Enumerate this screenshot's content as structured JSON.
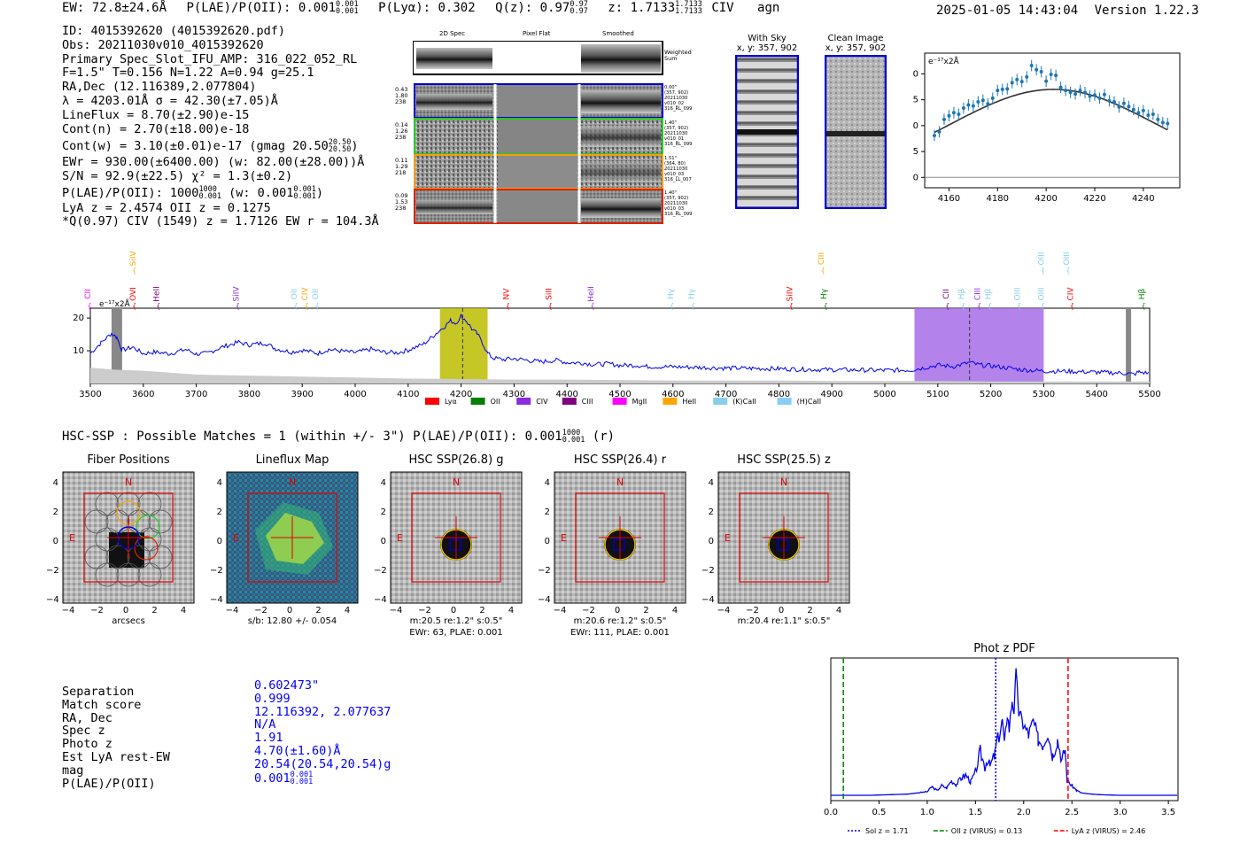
{
  "header": {
    "ew": "EW: 72.8±24.6Å",
    "plae_label": "P(LAE)/P(OII): 0.001",
    "plae_hi": "0.001",
    "plae_lo": "0.001",
    "plya": "P(Lyα): 0.302",
    "qz_label": "Q(z): 0.97",
    "qz_hi": "0.97",
    "qz_lo": "0.97",
    "z_label": "z: 1.7133",
    "z_hi": "1.7133",
    "z_lo": "1.7133",
    "line": "CIV",
    "class": "agn",
    "timestamp": "2025-01-05 14:43:04",
    "version": "Version 1.22.3"
  },
  "info": {
    "id": "ID: 4015392620 (4015392620.pdf)",
    "obs": "Obs: 20211030v010_4015392620",
    "primary": "Primary Spec_Slot_IFU_AMP: 316_022_052_RL",
    "fwhm": "F=1.5\"  T=0.156  N=1.22  A=0.94  g=25.1",
    "radec": "RA,Dec (12.116389,2.077804)",
    "lambda": "λ = 4203.01Å  σ = 42.30(±7.05)Å",
    "lineflux": "LineFlux = 8.70(±2.90)e-15",
    "contn": "Cont(n) = 2.70(±18.00)e-18",
    "contw": "Cont(w) = 3.10(±0.01)e-17 (gmag 20.50",
    "contw_hi": "20.50",
    "contw_lo": "20.50",
    "ewr": "EWr = 930.00(±6400.00) (w: 82.00(±28.00))Å",
    "sn": "S/N = 92.9(±22.5)  χ² = 1.3(±0.2)",
    "plae": "P(LAE)/P(OII): 1000",
    "plae_hi": "1000",
    "plae_lo": "0.001",
    "plae_w": "(w: 0.001",
    "plae_w_hi": "0.001",
    "plae_w_lo": "0.001",
    "lyaz": "LyA z = 2.4574  OII z = 0.1275",
    "q": "*Q(0.97) CIV (1549) z = 1.7126  EW r = 104.3Å"
  },
  "cutouts": {
    "col_headers": [
      "2D Spec",
      "Pixel Flat",
      "Smoothed"
    ],
    "weighted_label": "Weighted\nSum",
    "rows": [
      {
        "left": "0.43\n1.80\n238",
        "right": "0.00\"\n(357, 902)\n20211030\nv010_02\n316_RL_099",
        "color": "#0000cc"
      },
      {
        "left": "0.14\n1.26\n238",
        "right": "1.40\"\n(357, 902)\n20211030\nv010_01\n316_RL_099",
        "color": "#22cc22"
      },
      {
        "left": "0.11\n1.29\n218",
        "right": "1.51\"\n(364, 80)\n20211030\nv010_03\n316_LL_007",
        "color": "#f5a000"
      },
      {
        "left": "0.09\n1.53\n238",
        "right": "1.40\"\n(357, 902)\n20211030\nv010_03\n316_RL_099",
        "color": "#dd2200"
      }
    ],
    "with_sky": "With Sky",
    "with_sky_xy": "x, y: 357, 902",
    "clean": "Clean Image",
    "clean_xy": "x, y: 357, 902"
  },
  "colors": {
    "blue": "#0000ff",
    "red": "#e8000b",
    "olive": "#bcbd00",
    "violet": "#a66de8",
    "lya": "#ff0000",
    "oii": "#008000",
    "civ": "#8a2be2",
    "ciii": "#800080",
    "mgii": "#ff00ff",
    "heii": "#ffa500",
    "kcaii": "#87ceeb",
    "hcaii": "#87cefa"
  },
  "chart_data": [
    {
      "type": "scatter",
      "name": "zoom-line-fit",
      "ylabel": "e⁻¹⁷x2Å",
      "xlim": [
        4150,
        4255
      ],
      "ylim": [
        -2,
        24
      ],
      "xticks": [
        4160,
        4180,
        4200,
        4220,
        4240
      ],
      "yticks": [
        0,
        5,
        10,
        15,
        20
      ],
      "x": [
        4154,
        4156,
        4158,
        4160,
        4162,
        4164,
        4166,
        4168,
        4170,
        4172,
        4174,
        4176,
        4178,
        4180,
        4182,
        4184,
        4186,
        4188,
        4190,
        4192,
        4194,
        4196,
        4198,
        4200,
        4202,
        4204,
        4206,
        4208,
        4210,
        4212,
        4214,
        4216,
        4218,
        4220,
        4222,
        4224,
        4226,
        4228,
        4230,
        4232,
        4234,
        4236,
        4238,
        4240,
        4242,
        4244,
        4246,
        4248,
        4250
      ],
      "y": [
        8.1,
        8.8,
        11.2,
        11.9,
        12.5,
        12.2,
        13.4,
        14.0,
        13.8,
        14.6,
        14.9,
        14.2,
        15.3,
        16.8,
        17.0,
        17.1,
        18.3,
        18.9,
        18.5,
        19.4,
        21.6,
        20.8,
        20.4,
        18.6,
        19.9,
        19.7,
        17.4,
        16.8,
        16.4,
        16.1,
        16.8,
        16.4,
        15.7,
        15.9,
        15.3,
        16.0,
        14.8,
        14.6,
        13.6,
        14.3,
        13.7,
        13.1,
        12.5,
        12.9,
        12.0,
        12.2,
        11.2,
        10.6,
        10.4
      ],
      "fit": {
        "center": 4203.01,
        "sigma": 42.3,
        "peak": 17.0,
        "base": 0
      }
    },
    {
      "type": "line",
      "name": "full-spectrum",
      "ylabel": "e⁻¹⁷x2Å",
      "xlim": [
        3500,
        5500
      ],
      "ylim": [
        0,
        23
      ],
      "xticks": [
        3500,
        3600,
        3700,
        3800,
        3900,
        4000,
        4100,
        4200,
        4300,
        4400,
        4500,
        4600,
        4700,
        4800,
        4900,
        5000,
        5100,
        5200,
        5300,
        5400,
        5500
      ],
      "yticks": [
        10,
        20
      ],
      "series": [
        {
          "name": "spectrum",
          "x": [
            3500,
            3520,
            3540,
            3550,
            3560,
            3580,
            3600,
            3620,
            3650,
            3680,
            3700,
            3720,
            3750,
            3780,
            3800,
            3830,
            3850,
            3880,
            3900,
            3930,
            3950,
            3980,
            4000,
            4030,
            4050,
            4080,
            4100,
            4130,
            4150,
            4170,
            4180,
            4190,
            4200,
            4210,
            4220,
            4230,
            4240,
            4250,
            4260,
            4280,
            4300,
            4330,
            4350,
            4380,
            4400,
            4430,
            4450,
            4480,
            4500,
            4530,
            4550,
            4580,
            4600,
            4650,
            4700,
            4750,
            4800,
            4850,
            4900,
            4950,
            5000,
            5050,
            5100,
            5130,
            5160,
            5180,
            5200,
            5230,
            5260,
            5300,
            5350,
            5400,
            5450,
            5470,
            5480,
            5500
          ],
          "y": [
            9.2,
            12.4,
            15.3,
            14.1,
            10.2,
            11.1,
            9.1,
            9.6,
            9.1,
            10.4,
            9.0,
            9.2,
            11.2,
            12.6,
            11.8,
            12.4,
            10.6,
            9.6,
            10.2,
            9.2,
            10.4,
            9.8,
            9.4,
            10.5,
            9.6,
            9.4,
            10.2,
            12.1,
            14.9,
            17.6,
            19.2,
            18.4,
            20.6,
            19.1,
            16.7,
            15.2,
            12.6,
            9.2,
            7.8,
            7.3,
            7.6,
            7.0,
            6.6,
            7.1,
            6.4,
            6.3,
            5.8,
            6.0,
            5.5,
            5.6,
            5.2,
            5.1,
            5.1,
            4.9,
            4.7,
            4.6,
            4.5,
            4.3,
            4.2,
            4.1,
            4.0,
            4.1,
            5.6,
            5.2,
            6.4,
            5.6,
            5.4,
            4.8,
            4.2,
            3.8,
            3.7,
            3.4,
            3.2,
            2.8,
            3.5,
            3.1
          ]
        },
        {
          "name": "sky",
          "x": [
            3500,
            3550,
            3600,
            3650,
            3700,
            3800,
            3900,
            4000,
            4100,
            4200,
            4300,
            4400,
            4500,
            4600,
            4700,
            4800,
            4900,
            5000,
            5100,
            5200,
            5300,
            5400,
            5500
          ],
          "y": [
            1.6,
            1.4,
            1.3,
            1.1,
            0.9,
            0.8,
            0.7,
            0.6,
            0.5,
            0.45,
            0.4,
            0.4,
            0.35,
            0.3,
            0.3,
            0.3,
            0.25,
            0.25,
            0.25,
            0.2,
            0.2,
            0.2,
            0.2
          ]
        }
      ],
      "highlights": [
        {
          "from": 4160,
          "to": 4250,
          "color": "#bcbd00",
          "marker": 4203
        },
        {
          "from": 5056,
          "to": 5300,
          "color": "#a66de8",
          "marker": 5160
        }
      ],
      "masked": [
        [
          3540,
          3560
        ],
        [
          5455,
          5465
        ]
      ],
      "top_lines": [
        {
          "label": "CII",
          "x": 3500,
          "color": "#ff00ff",
          "row": 2
        },
        {
          "label": "OVI",
          "x": 3585,
          "color": "#ff0000",
          "row": 2
        },
        {
          "label": "SiIV",
          "x": 3585,
          "color": "#ffa500",
          "row": 0
        },
        {
          "label": "HeII",
          "x": 3630,
          "color": "#800080",
          "row": 2
        },
        {
          "label": "SiIV",
          "x": 3780,
          "color": "#8a2be2",
          "row": 2
        },
        {
          "label": "OII",
          "x": 3890,
          "color": "#87ceeb",
          "row": 2
        },
        {
          "label": "CIV",
          "x": 3910,
          "color": "#ffa500",
          "row": 2
        },
        {
          "label": "OII",
          "x": 3930,
          "color": "#87ceeb",
          "row": 2
        },
        {
          "label": "NV",
          "x": 4290,
          "color": "#ff0000",
          "row": 2
        },
        {
          "label": "SiII",
          "x": 4370,
          "color": "#ff0000",
          "row": 2
        },
        {
          "label": "HeII",
          "x": 4450,
          "color": "#8a2be2",
          "row": 2
        },
        {
          "label": "Hγ",
          "x": 4600,
          "color": "#87ceeb",
          "row": 2
        },
        {
          "label": "Hγ",
          "x": 4640,
          "color": "#87ceeb",
          "row": 2
        },
        {
          "label": "SiIV",
          "x": 4825,
          "color": "#ff0000",
          "row": 2
        },
        {
          "label": "CIII",
          "x": 4885,
          "color": "#ffa500",
          "row": 0
        },
        {
          "label": "Hγ",
          "x": 4890,
          "color": "#008000",
          "row": 2
        },
        {
          "label": "CII",
          "x": 5120,
          "color": "#800080",
          "row": 2
        },
        {
          "label": "Hβ",
          "x": 5150,
          "color": "#87ceeb",
          "row": 2
        },
        {
          "label": "CIII",
          "x": 5180,
          "color": "#8a2be2",
          "row": 2
        },
        {
          "label": "Hβ",
          "x": 5200,
          "color": "#87ceeb",
          "row": 2
        },
        {
          "label": "OIII",
          "x": 5255,
          "color": "#87ceeb",
          "row": 2
        },
        {
          "label": "OIII",
          "x": 5300,
          "color": "#87ceeb",
          "row": 2
        },
        {
          "label": "OIII",
          "x": 5300,
          "color": "#87ceeb",
          "row": 0
        },
        {
          "label": "OIII",
          "x": 5348,
          "color": "#87ceeb",
          "row": 0
        },
        {
          "label": "CIV",
          "x": 5355,
          "color": "#ff0000",
          "row": 2
        },
        {
          "label": "Hβ",
          "x": 5490,
          "color": "#008000",
          "row": 2
        }
      ],
      "legend": [
        {
          "label": "Lyα",
          "color": "#ff0000"
        },
        {
          "label": "OII",
          "color": "#008000"
        },
        {
          "label": "CIV",
          "color": "#8a2be2"
        },
        {
          "label": "CIII",
          "color": "#800080"
        },
        {
          "label": "MgII",
          "color": "#ff00ff"
        },
        {
          "label": "HeII",
          "color": "#ffa500"
        },
        {
          "label": "(K)CaII",
          "color": "#87ceeb"
        },
        {
          "label": "(H)CaII",
          "color": "#87cefa"
        }
      ]
    },
    {
      "type": "line",
      "name": "phot-z-pdf",
      "title": "Phot z PDF",
      "xlim": [
        0.0,
        3.6
      ],
      "ylim": [
        0,
        1.08
      ],
      "xticks": [
        "0.0",
        "0.5",
        "1.0",
        "1.5",
        "2.0",
        "2.5",
        "3.0",
        "3.5"
      ],
      "x": [
        0.0,
        0.2,
        0.4,
        0.6,
        0.8,
        1.0,
        1.05,
        1.1,
        1.15,
        1.2,
        1.25,
        1.3,
        1.35,
        1.4,
        1.45,
        1.5,
        1.55,
        1.6,
        1.62,
        1.65,
        1.7,
        1.72,
        1.75,
        1.78,
        1.8,
        1.83,
        1.85,
        1.88,
        1.9,
        1.92,
        1.95,
        1.97,
        2.0,
        2.05,
        2.1,
        2.15,
        2.2,
        2.25,
        2.3,
        2.35,
        2.4,
        2.43,
        2.45,
        2.5,
        2.55,
        2.6,
        2.7,
        2.8,
        3.0,
        3.2,
        3.4,
        3.6
      ],
      "y": [
        0.0,
        0.0,
        0.0,
        0.005,
        0.01,
        0.03,
        0.07,
        0.04,
        0.08,
        0.06,
        0.12,
        0.09,
        0.14,
        0.17,
        0.11,
        0.19,
        0.36,
        0.23,
        0.3,
        0.24,
        0.33,
        0.44,
        0.5,
        0.62,
        0.4,
        0.68,
        0.55,
        0.79,
        0.7,
        1.0,
        0.68,
        0.64,
        0.58,
        0.5,
        0.61,
        0.46,
        0.42,
        0.52,
        0.33,
        0.46,
        0.29,
        0.38,
        0.12,
        0.08,
        0.04,
        0.02,
        0.01,
        0.005,
        0.0,
        0.0,
        0.0,
        0.0
      ],
      "vlines": [
        {
          "x": 1.71,
          "color": "#0000ff",
          "style": "dotted"
        },
        {
          "x": 0.13,
          "color": "#008000",
          "style": "dashed"
        },
        {
          "x": 2.46,
          "color": "#ff0000",
          "style": "dashed"
        }
      ],
      "legend": [
        "Sol z = 1.71",
        "OII z (VIRUS) = 0.13",
        "LyA z (VIRUS) = 2.46"
      ]
    }
  ],
  "hsc": {
    "title": "HSC-SSP : Possible Matches = 1 (within +/- 3\")  P(LAE)/P(OII): 0.001",
    "frac_hi": "1000",
    "frac_lo": "0.001",
    "suffix": "(r)"
  },
  "panels": [
    {
      "title": "Fiber Positions",
      "caption": "arcsecs"
    },
    {
      "title": "Lineflux Map",
      "caption": "s/b: 12.80 +/- 0.054"
    },
    {
      "title": "HSC SSP(26.8) g",
      "caption": "m:20.5  re:1.2\"  s:0.5\"",
      "caption2": "EWr: 63, PLAE: 0.001"
    },
    {
      "title": "HSC SSP(26.4) r",
      "caption": "m:20.6  re:1.2\"  s:0.5\"",
      "caption2": "EWr: 111, PLAE: 0.001"
    },
    {
      "title": "HSC SSP(25.5) z",
      "caption": "m:20.4  re:1.1\"  s:0.5\""
    }
  ],
  "panel_axes": {
    "yticks": [
      "4",
      "2",
      "0",
      "−2",
      "−4"
    ],
    "xticks": [
      "−4",
      "−2",
      "0",
      "2",
      "4"
    ],
    "north": "N",
    "east": "E"
  },
  "match": {
    "labels": [
      "Separation",
      "Match score",
      "RA, Dec",
      "Spec z",
      "Photo z",
      "Est LyA rest-EW",
      "mag",
      "P(LAE)/P(OII)"
    ],
    "values": [
      "0.602473\"",
      "0.999",
      "12.116392, 2.077637",
      "N/A",
      "1.91",
      "4.70(±1.60)Å",
      "20.54(20.54,20.54)g",
      "0.001"
    ],
    "plae_hi": "0.001",
    "plae_lo": "0.001"
  }
}
